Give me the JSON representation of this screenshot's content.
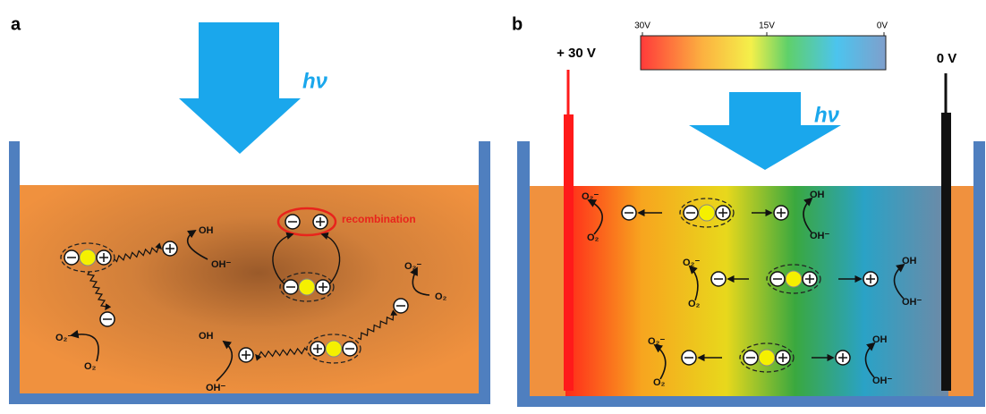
{
  "panels": [
    {
      "label": "a",
      "light": "hν",
      "recombination": "recombination",
      "species": [
        "OH",
        "OH⁻",
        "O₂⁻",
        "O₂",
        "O₂⁻",
        "O₂",
        "OH",
        "OH⁻"
      ]
    },
    {
      "label": "b",
      "light": "hν",
      "electrode_left": "+ 30 V",
      "electrode_right": "0 V",
      "scale": [
        "30V",
        "15V",
        "0V"
      ],
      "species": [
        "O₂⁻",
        "O₂",
        "OH",
        "OH⁻",
        "O₂⁻",
        "O₂",
        "OH",
        "OH⁻",
        "O₂⁻",
        "O₂",
        "OH",
        "OH⁻"
      ]
    }
  ]
}
